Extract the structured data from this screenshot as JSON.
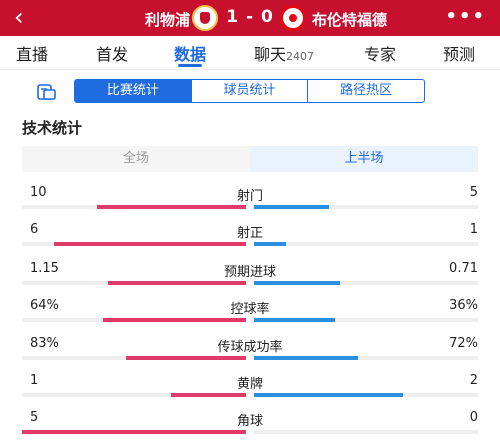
{
  "header": {
    "home_team": "利物浦",
    "away_team": "布伦特福德",
    "score": "1 - 0",
    "back_icon": "‹",
    "more_icon": "•••"
  },
  "tabs": [
    {
      "label": "直播"
    },
    {
      "label": "首发"
    },
    {
      "label": "数据",
      "active": true
    },
    {
      "label": "聊天",
      "count": "2407"
    },
    {
      "label": "专家"
    },
    {
      "label": "预测"
    }
  ],
  "stat_tabs": [
    "比赛统计",
    "球员统计",
    "路径热区"
  ],
  "section_title": "技术统计",
  "half_toggle": {
    "full": "全场",
    "first_half": "上半场"
  },
  "stats": [
    {
      "label": "射门",
      "home": "10",
      "away": "5",
      "home_ratio": 0.667,
      "away_ratio": 0.333
    },
    {
      "label": "射正",
      "home": "6",
      "away": "1",
      "home_ratio": 0.857,
      "away_ratio": 0.143
    },
    {
      "label": "预期进球",
      "home": "1.15",
      "away": "0.71",
      "home_ratio": 0.618,
      "away_ratio": 0.382
    },
    {
      "label": "控球率",
      "home": "64%",
      "away": "36%",
      "home_ratio": 0.64,
      "away_ratio": 0.36
    },
    {
      "label": "传球成功率",
      "home": "83%",
      "away": "72%",
      "home_ratio": 0.535,
      "away_ratio": 0.465
    },
    {
      "label": "黄牌",
      "home": "1",
      "away": "2",
      "home_ratio": 0.333,
      "away_ratio": 0.667
    },
    {
      "label": "角球",
      "home": "5",
      "away": "0",
      "home_ratio": 1.0,
      "away_ratio": 0.0
    }
  ],
  "colors": {
    "header_bg": "#c6102e",
    "accent": "#1f6be0",
    "home_bar": "#e03a6b",
    "away_bar": "#2a8fe0"
  }
}
